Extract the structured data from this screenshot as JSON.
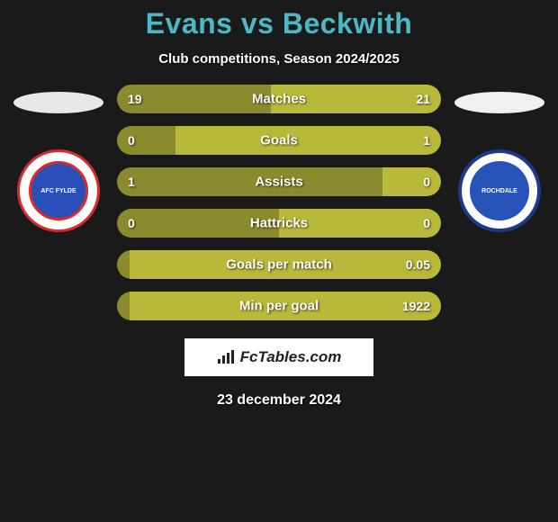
{
  "header": {
    "title": "Evans vs Beckwith",
    "title_color": "#4db8c4",
    "subtitle": "Club competitions, Season 2024/2025"
  },
  "background_color": "#1a1a1a",
  "left_side": {
    "ellipse_color": "#e8e8e8",
    "badge_label": "AFC FYLDE"
  },
  "right_side": {
    "ellipse_color": "#f0f0f0",
    "badge_label": "ROCHDALE"
  },
  "bars": {
    "color_left": "#8a8a2e",
    "color_right": "#b8b83a",
    "items": [
      {
        "label": "Matches",
        "left_value": "19",
        "right_value": "21",
        "left_pct": 47.5,
        "right_pct": 52.5
      },
      {
        "label": "Goals",
        "left_value": "0",
        "right_value": "1",
        "left_pct": 18,
        "right_pct": 82
      },
      {
        "label": "Assists",
        "left_value": "1",
        "right_value": "0",
        "left_pct": 82,
        "right_pct": 18
      },
      {
        "label": "Hattricks",
        "left_value": "0",
        "right_value": "0",
        "left_pct": 50,
        "right_pct": 50
      },
      {
        "label": "Goals per match",
        "left_value": "",
        "right_value": "0.05",
        "left_pct": 4,
        "right_pct": 96
      },
      {
        "label": "Min per goal",
        "left_value": "",
        "right_value": "1922",
        "left_pct": 4,
        "right_pct": 96
      }
    ]
  },
  "footer": {
    "brand": "FcTables.com",
    "date": "23 december 2024"
  }
}
